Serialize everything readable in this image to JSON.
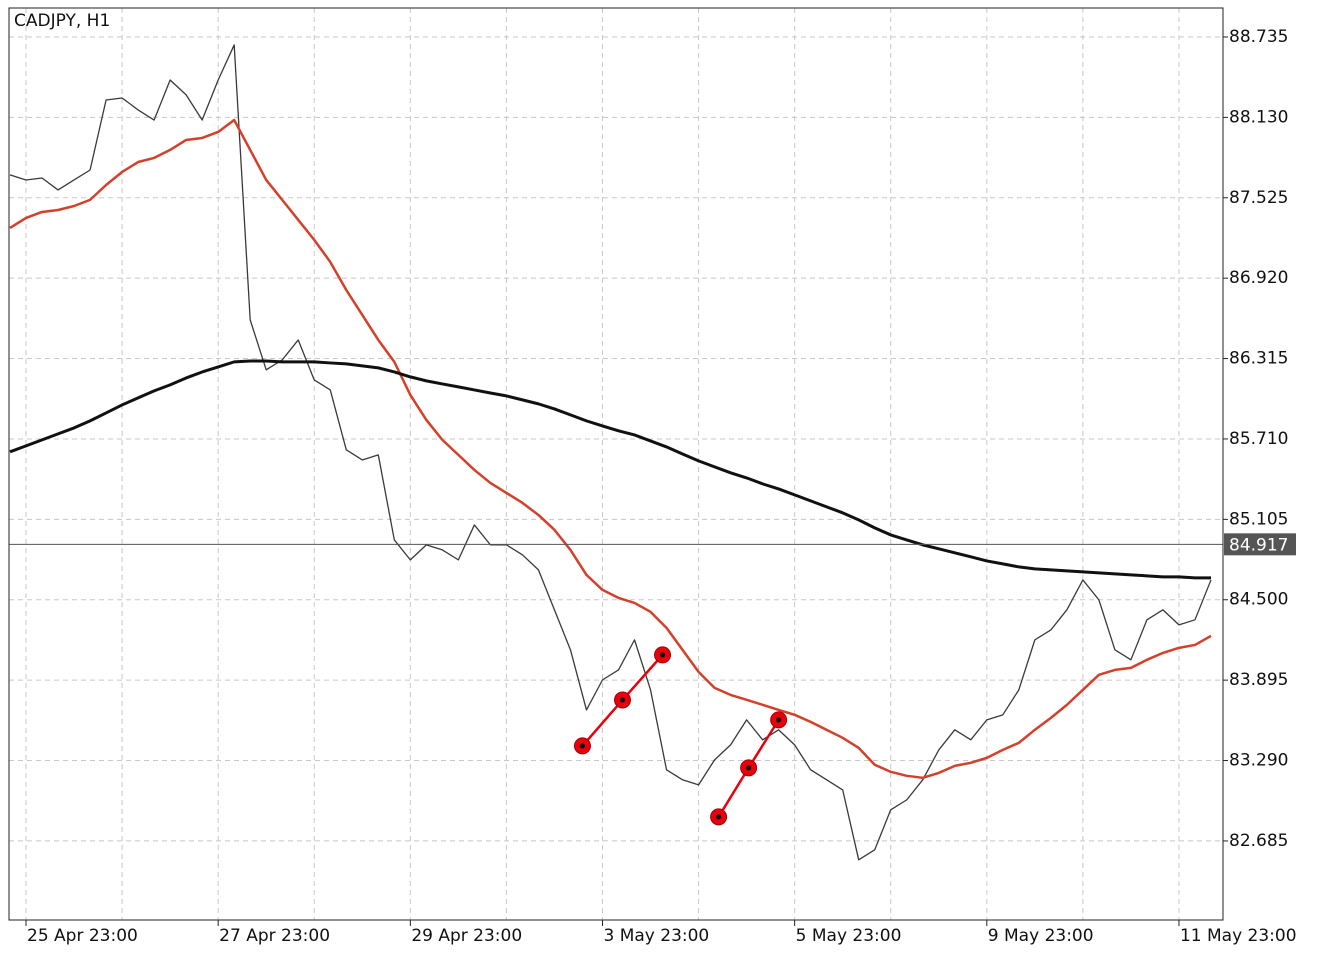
{
  "chart_data": {
    "type": "line",
    "title": "CADJPY, H1",
    "x": [
      -4,
      0,
      4,
      8,
      12,
      16,
      20,
      24,
      28,
      32,
      36,
      40,
      44,
      48,
      52,
      56,
      60,
      64,
      68,
      72,
      76,
      80,
      84,
      88,
      92,
      96,
      100,
      104,
      108,
      112,
      116,
      120,
      124,
      128,
      132,
      136,
      140,
      144,
      148,
      152,
      156,
      160,
      164,
      168,
      172,
      176,
      180,
      184,
      188,
      192,
      196,
      200,
      204,
      208,
      212,
      216,
      220,
      224,
      228,
      232,
      236,
      240,
      244,
      248,
      252,
      256,
      260,
      264,
      268,
      272,
      276,
      280,
      284,
      288,
      292,
      296
    ],
    "xlim": [
      -4.25,
      299
    ],
    "xticks": [
      {
        "value": 0,
        "label": "25 Apr 23:00"
      },
      {
        "value": 48,
        "label": "27 Apr 23:00"
      },
      {
        "value": 96,
        "label": "29 Apr 23:00"
      },
      {
        "value": 144,
        "label": "3 May 23:00"
      },
      {
        "value": 192,
        "label": "5 May 23:00"
      },
      {
        "value": 240,
        "label": "9 May 23:00"
      },
      {
        "value": 288,
        "label": "11 May 23:00"
      }
    ],
    "xgrid": [
      0,
      24,
      48,
      72,
      96,
      120,
      144,
      168,
      192,
      216,
      240,
      264,
      288
    ],
    "ylim": [
      82.09,
      88.953
    ],
    "yticks": [
      88.735,
      {
        "value": 88.13,
        "label": "88.130"
      },
      87.525,
      {
        "value": 86.92,
        "label": "86.920"
      },
      86.315,
      {
        "value": 85.71,
        "label": "85.710"
      },
      85.105,
      {
        "value": 84.5,
        "label": "84.500"
      },
      83.895,
      {
        "value": 83.29,
        "label": "83.290"
      },
      82.685
    ],
    "grid": true,
    "current_price": 84.917,
    "series": [
      {
        "color": "#3a3a3a",
        "width": 1.3,
        "values": [
          87.697,
          87.659,
          87.674,
          87.584,
          87.659,
          87.734,
          88.261,
          88.276,
          88.186,
          88.11,
          88.411,
          88.299,
          88.11,
          88.411,
          88.675,
          86.606,
          86.23,
          86.305,
          86.455,
          86.154,
          86.079,
          85.628,
          85.552,
          85.59,
          84.95,
          84.8,
          84.913,
          84.875,
          84.8,
          85.063,
          84.913,
          84.913,
          84.838,
          84.725,
          84.424,
          84.123,
          83.671,
          83.897,
          83.972,
          84.198,
          83.822,
          83.22,
          83.145,
          83.107,
          83.295,
          83.408,
          83.596,
          83.446,
          83.521,
          83.408,
          83.22,
          83.145,
          83.069,
          82.543,
          82.618,
          82.919,
          82.994,
          83.145,
          83.37,
          83.521,
          83.446,
          83.596,
          83.634,
          83.822,
          84.198,
          84.273,
          84.424,
          84.649,
          84.499,
          84.123,
          84.048,
          84.349,
          84.424,
          84.311,
          84.349,
          84.649
        ]
      },
      {
        "color": "#d4402a",
        "width": 2.5,
        "values": [
          87.298,
          87.373,
          87.418,
          87.433,
          87.463,
          87.509,
          87.621,
          87.719,
          87.794,
          87.825,
          87.885,
          87.96,
          87.975,
          88.02,
          88.11,
          87.885,
          87.659,
          87.509,
          87.358,
          87.208,
          87.042,
          86.831,
          86.643,
          86.455,
          86.29,
          86.041,
          85.853,
          85.703,
          85.59,
          85.477,
          85.379,
          85.304,
          85.229,
          85.138,
          85.026,
          84.875,
          84.687,
          84.574,
          84.514,
          84.476,
          84.409,
          84.288,
          84.123,
          83.957,
          83.837,
          83.784,
          83.747,
          83.709,
          83.671,
          83.634,
          83.581,
          83.521,
          83.461,
          83.385,
          83.258,
          83.205,
          83.175,
          83.16,
          83.197,
          83.25,
          83.273,
          83.31,
          83.37,
          83.423,
          83.521,
          83.611,
          83.709,
          83.822,
          83.935,
          83.972,
          83.987,
          84.048,
          84.1,
          84.138,
          84.16,
          84.228
        ]
      },
      {
        "color": "#111111",
        "width": 3,
        "values": [
          85.613,
          85.658,
          85.703,
          85.748,
          85.793,
          85.846,
          85.906,
          85.966,
          86.019,
          86.072,
          86.117,
          86.169,
          86.214,
          86.252,
          86.29,
          86.297,
          86.297,
          86.29,
          86.29,
          86.29,
          86.282,
          86.275,
          86.26,
          86.245,
          86.214,
          86.177,
          86.147,
          86.124,
          86.102,
          86.079,
          86.056,
          86.034,
          86.004,
          85.974,
          85.936,
          85.891,
          85.846,
          85.808,
          85.771,
          85.74,
          85.695,
          85.65,
          85.597,
          85.545,
          85.5,
          85.455,
          85.417,
          85.372,
          85.334,
          85.289,
          85.244,
          85.199,
          85.154,
          85.101,
          85.041,
          84.988,
          84.95,
          84.913,
          84.883,
          84.853,
          84.823,
          84.792,
          84.77,
          84.747,
          84.732,
          84.725,
          84.717,
          84.71,
          84.702,
          84.695,
          84.687,
          84.68,
          84.672,
          84.672,
          84.665,
          84.665
        ]
      }
    ],
    "markers": [
      {
        "color": "#e8000b",
        "x": [
          139,
          149,
          159
        ],
        "y": [
          83.4,
          83.746,
          84.085
        ]
      },
      {
        "color": "#e8000b",
        "x": [
          173,
          180.5,
          188
        ],
        "y": [
          82.866,
          83.235,
          83.596
        ]
      }
    ]
  }
}
